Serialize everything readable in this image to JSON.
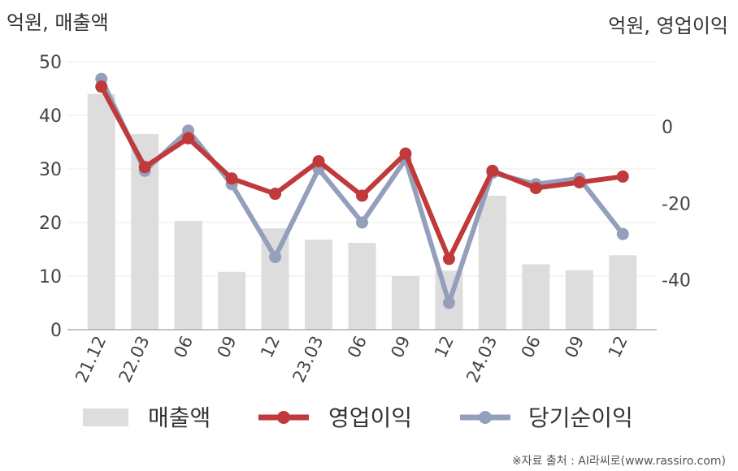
{
  "chart_data": {
    "type": "bar+line",
    "categories": [
      "21.12",
      "22.03",
      "06",
      "09",
      "12",
      "23.03",
      "06",
      "09",
      "12",
      "24.03",
      "06",
      "09",
      "12"
    ],
    "y_left": {
      "label": "억원, 매출액",
      "ticks": [
        "0",
        "10",
        "20",
        "30",
        "40",
        "50"
      ],
      "lim": [
        0,
        50
      ]
    },
    "y_right": {
      "label": "억원, 영업이익",
      "ticks": [
        "0",
        "-20",
        "-40"
      ],
      "lim": [
        -53,
        17
      ]
    },
    "series": [
      {
        "name": "매출액",
        "kind": "bar",
        "axis": "left",
        "color": "#dddddd",
        "values": [
          44,
          36.5,
          20.3,
          10.8,
          18.9,
          16.8,
          16.2,
          10.0,
          11.0,
          25.0,
          12.2,
          11.1,
          13.9
        ]
      },
      {
        "name": "영업이익",
        "kind": "line",
        "axis": "right",
        "color": "#c0393b",
        "values": [
          10.5,
          -10.5,
          -3,
          -13.5,
          -17.5,
          -9,
          -18,
          -7,
          -34.5,
          -11.5,
          -16,
          -14.5,
          -13
        ]
      },
      {
        "name": "당기순이익",
        "kind": "line",
        "axis": "right",
        "color": "#94a0bb",
        "values": [
          12.5,
          -11.5,
          -1,
          -15,
          -34,
          -11,
          -25,
          -8.5,
          -46,
          -12,
          -15,
          -13.5,
          -28
        ]
      }
    ],
    "grid": true,
    "legend_position": "bottom"
  },
  "source_note": "※자료 출처 : AI라씨로(www.rassiro.com)"
}
